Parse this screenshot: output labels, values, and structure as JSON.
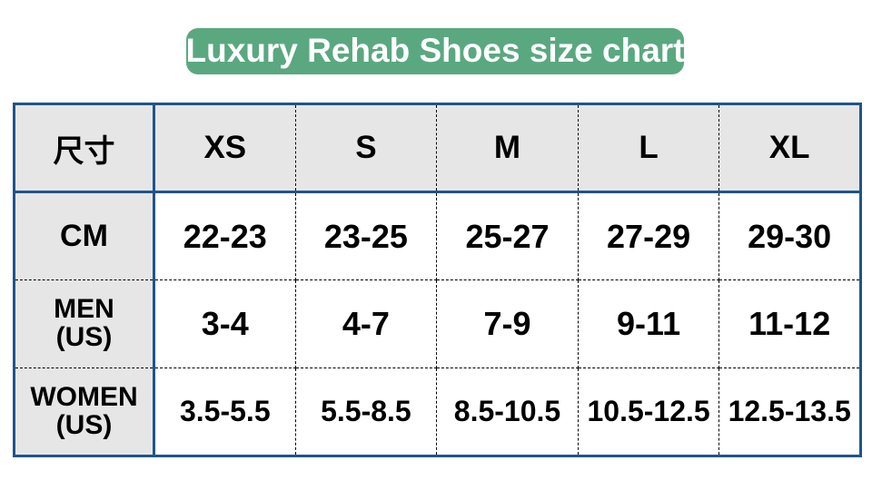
{
  "title": {
    "text": "Luxury Rehab Shoes size chart",
    "banner_color": "#5aa880",
    "text_color": "#ffffff"
  },
  "table": {
    "border_color": "#20548a",
    "header_bg": "#e6e6e6",
    "header": [
      "尺寸",
      "XS",
      "S",
      "M",
      "L",
      "XL"
    ],
    "rows": [
      {
        "label": "CM",
        "values": [
          "22-23",
          "23-25",
          "25-27",
          "27-29",
          "29-30"
        ]
      },
      {
        "label": "MEN",
        "label_sub": "(US)",
        "values": [
          "3-4",
          "4-7",
          "7-9",
          "9-11",
          "11-12"
        ]
      },
      {
        "label": "WOMEN",
        "label_sub": "(US)",
        "values": [
          "3.5-5.5",
          "5.5-8.5",
          "8.5-10.5",
          "10.5-12.5",
          "12.5-13.5"
        ]
      }
    ]
  },
  "chart_data": {
    "type": "table",
    "title": "Luxury Rehab Shoes size chart",
    "columns": [
      "尺寸",
      "XS",
      "S",
      "M",
      "L",
      "XL"
    ],
    "rows": [
      [
        "CM",
        "22-23",
        "23-25",
        "25-27",
        "27-29",
        "29-30"
      ],
      [
        "MEN (US)",
        "3-4",
        "4-7",
        "7-9",
        "9-11",
        "11-12"
      ],
      [
        "WOMEN (US)",
        "3.5-5.5",
        "5.5-8.5",
        "8.5-10.5",
        "10.5-12.5",
        "12.5-13.5"
      ]
    ]
  }
}
